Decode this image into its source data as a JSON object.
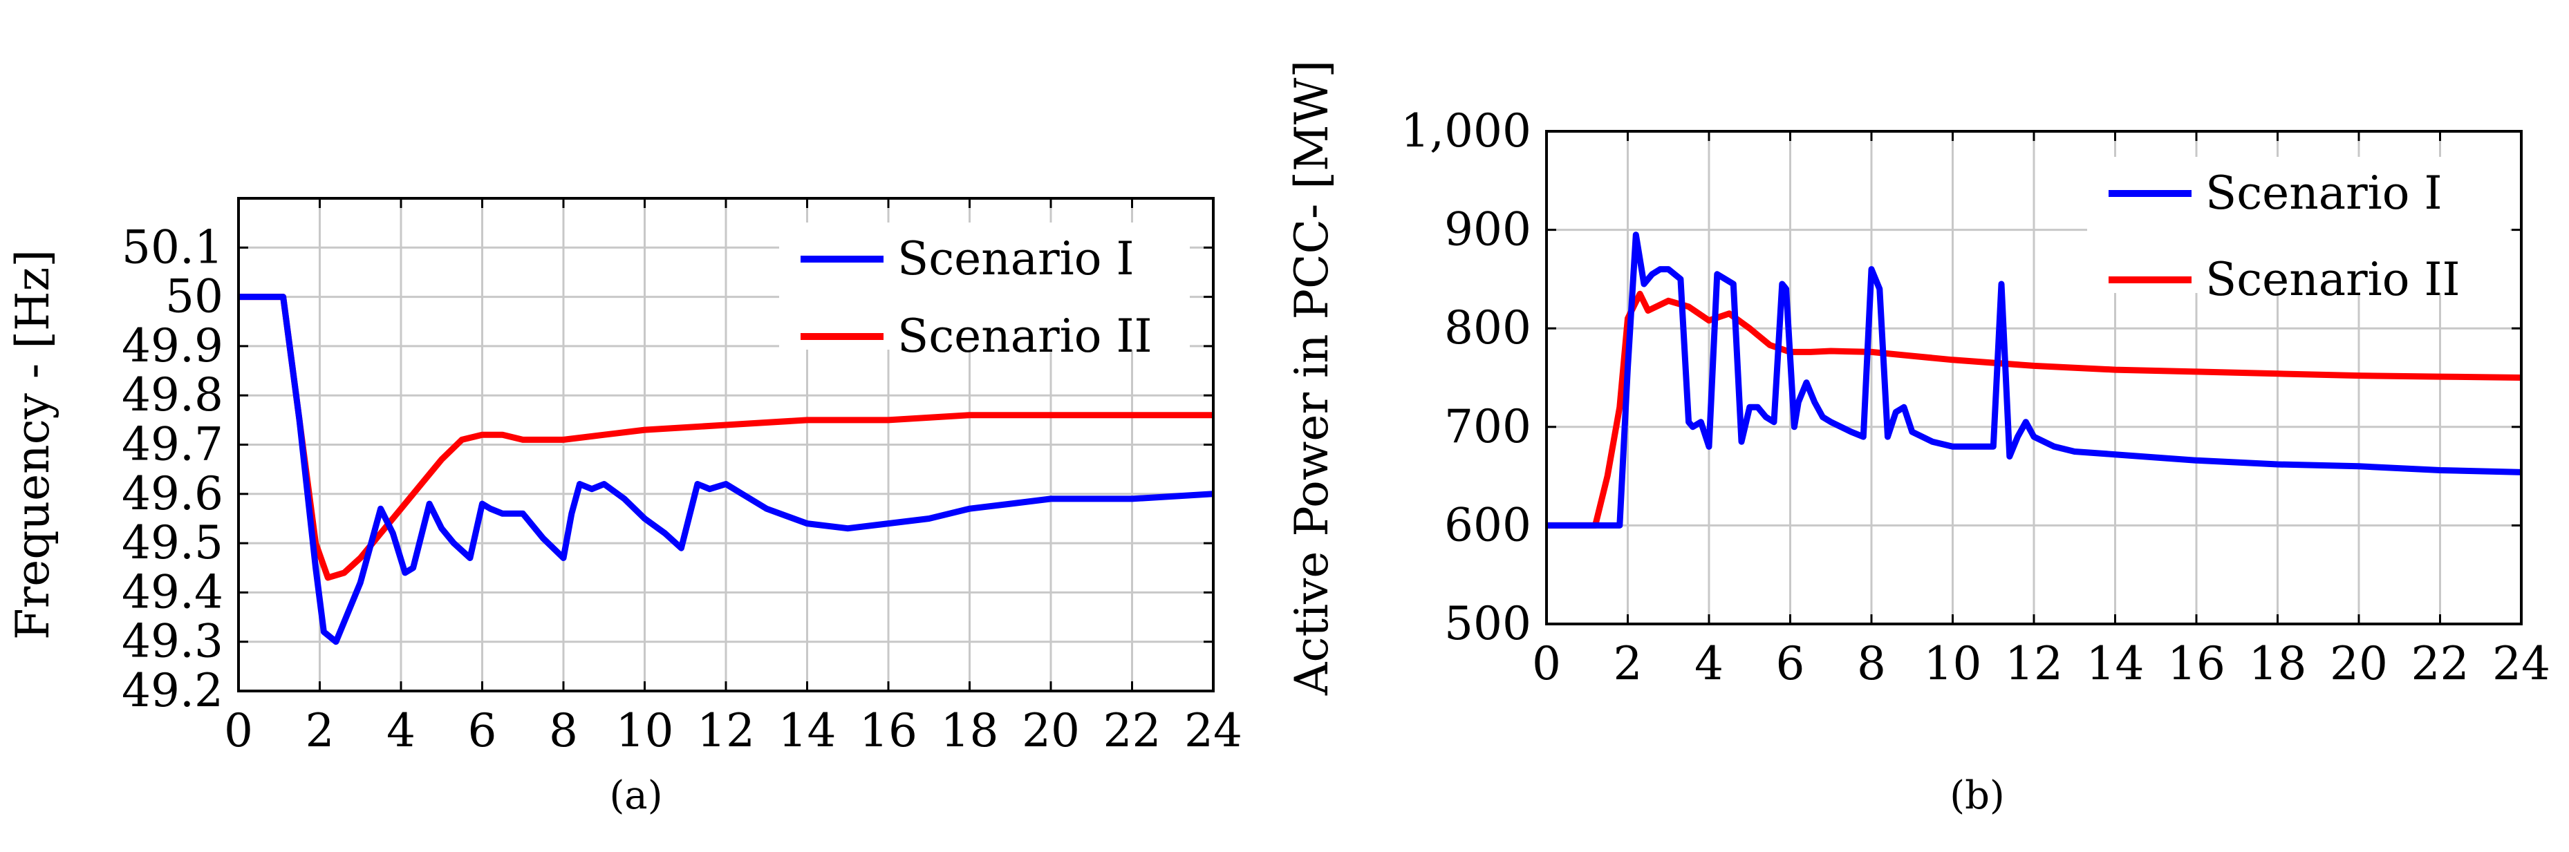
{
  "chart_data": [
    {
      "type": "line",
      "caption": "(a)",
      "title": "",
      "xlabel": "",
      "ylabel": "Frequency - [Hz]",
      "xlim": [
        0,
        24
      ],
      "ylim": [
        49.2,
        50.2
      ],
      "xticks": [
        0,
        2,
        4,
        6,
        8,
        10,
        12,
        14,
        16,
        18,
        20,
        22,
        24
      ],
      "xtick_labels": [
        "0",
        "2",
        "4",
        "6",
        "8",
        "10",
        "12",
        "14",
        "16",
        "18",
        "20",
        "22",
        "24"
      ],
      "yticks": [
        49.2,
        49.3,
        49.4,
        49.5,
        49.6,
        49.7,
        49.8,
        49.9,
        50,
        50.1
      ],
      "ytick_labels": [
        "49.2",
        "49.3",
        "49.4",
        "49.5",
        "49.6",
        "49.7",
        "49.8",
        "49.9",
        "50",
        "50.1"
      ],
      "grid": true,
      "legend_position": "top-right",
      "series": [
        {
          "name": "Scenario I",
          "color": "#0000ff",
          "x": [
            0,
            1.1,
            1.5,
            1.9,
            2.1,
            2.4,
            3.0,
            3.5,
            3.8,
            4.1,
            4.3,
            4.7,
            5.0,
            5.3,
            5.7,
            6.0,
            6.2,
            6.5,
            7.0,
            7.5,
            8.0,
            8.2,
            8.4,
            8.7,
            9.0,
            9.5,
            10.0,
            10.5,
            10.9,
            11.3,
            11.6,
            12.0,
            12.4,
            13.0,
            14.0,
            15.0,
            16.0,
            17.0,
            18.0,
            19.0,
            20.0,
            22.0,
            24.0
          ],
          "y": [
            50.0,
            50.0,
            49.75,
            49.45,
            49.32,
            49.3,
            49.42,
            49.57,
            49.52,
            49.44,
            49.45,
            49.58,
            49.53,
            49.5,
            49.47,
            49.58,
            49.57,
            49.56,
            49.56,
            49.51,
            49.47,
            49.56,
            49.62,
            49.61,
            49.62,
            49.59,
            49.55,
            49.52,
            49.49,
            49.62,
            49.61,
            49.62,
            49.6,
            49.57,
            49.54,
            49.53,
            49.54,
            49.55,
            49.57,
            49.58,
            49.59,
            49.59,
            49.6
          ]
        },
        {
          "name": "Scenario II",
          "color": "#ff0000",
          "x": [
            0,
            1.1,
            1.5,
            1.9,
            2.2,
            2.6,
            3.0,
            3.5,
            4.0,
            4.5,
            5.0,
            5.5,
            6.0,
            6.5,
            7.0,
            7.5,
            8.0,
            9.0,
            10.0,
            12.0,
            14.0,
            16.0,
            18.0,
            20.0,
            22.0,
            24.0
          ],
          "y": [
            50.0,
            50.0,
            49.75,
            49.5,
            49.43,
            49.44,
            49.47,
            49.52,
            49.57,
            49.62,
            49.67,
            49.71,
            49.72,
            49.72,
            49.71,
            49.71,
            49.71,
            49.72,
            49.73,
            49.74,
            49.75,
            49.75,
            49.76,
            49.76,
            49.76,
            49.76
          ]
        }
      ]
    },
    {
      "type": "line",
      "caption": "(b)",
      "title": "",
      "xlabel": "",
      "ylabel": "Active Power in PCC- [MW]",
      "xlim": [
        0,
        24
      ],
      "ylim": [
        500,
        1000
      ],
      "xticks": [
        0,
        2,
        4,
        6,
        8,
        10,
        12,
        14,
        16,
        18,
        20,
        22,
        24
      ],
      "xtick_labels": [
        "0",
        "2",
        "4",
        "6",
        "8",
        "10",
        "12",
        "14",
        "16",
        "18",
        "20",
        "22",
        "24"
      ],
      "yticks": [
        500,
        600,
        700,
        800,
        900,
        1000
      ],
      "ytick_labels": [
        "500",
        "600",
        "700",
        "800",
        "900",
        "1,000"
      ],
      "grid": true,
      "legend_position": "top-right",
      "series": [
        {
          "name": "Scenario I",
          "color": "#0000ff",
          "x": [
            0,
            1.8,
            2.0,
            2.2,
            2.4,
            2.6,
            2.8,
            3.0,
            3.3,
            3.5,
            3.6,
            3.8,
            4.0,
            4.2,
            4.4,
            4.6,
            4.8,
            5.0,
            5.2,
            5.4,
            5.6,
            5.8,
            5.9,
            6.1,
            6.2,
            6.4,
            6.6,
            6.8,
            7.0,
            7.5,
            7.8,
            8.0,
            8.2,
            8.4,
            8.6,
            8.8,
            9.0,
            9.5,
            10.0,
            11.0,
            11.2,
            11.4,
            11.6,
            11.8,
            12.0,
            12.5,
            13.0,
            14.0,
            16.0,
            18.0,
            20.0,
            22.0,
            24.0
          ],
          "y": [
            600,
            600,
            760,
            895,
            845,
            855,
            860,
            860,
            850,
            705,
            700,
            705,
            680,
            855,
            850,
            845,
            685,
            720,
            720,
            710,
            705,
            845,
            840,
            700,
            725,
            745,
            725,
            710,
            705,
            695,
            690,
            860,
            840,
            690,
            715,
            720,
            695,
            685,
            680,
            680,
            845,
            670,
            690,
            705,
            690,
            680,
            675,
            672,
            666,
            662,
            660,
            656,
            654
          ]
        },
        {
          "name": "Scenario II",
          "color": "#ff0000",
          "x": [
            0,
            1.2,
            1.5,
            1.8,
            2.0,
            2.3,
            2.5,
            3.0,
            3.5,
            4.0,
            4.5,
            5.0,
            5.5,
            6.0,
            6.5,
            7.0,
            8.0,
            9.0,
            10.0,
            12.0,
            14.0,
            16.0,
            18.0,
            20.0,
            22.0,
            24.0
          ],
          "y": [
            600,
            600,
            650,
            720,
            810,
            835,
            818,
            828,
            822,
            808,
            815,
            800,
            783,
            776,
            776,
            777,
            776,
            772,
            768,
            762,
            758,
            756,
            754,
            752,
            751,
            750
          ]
        }
      ]
    }
  ]
}
